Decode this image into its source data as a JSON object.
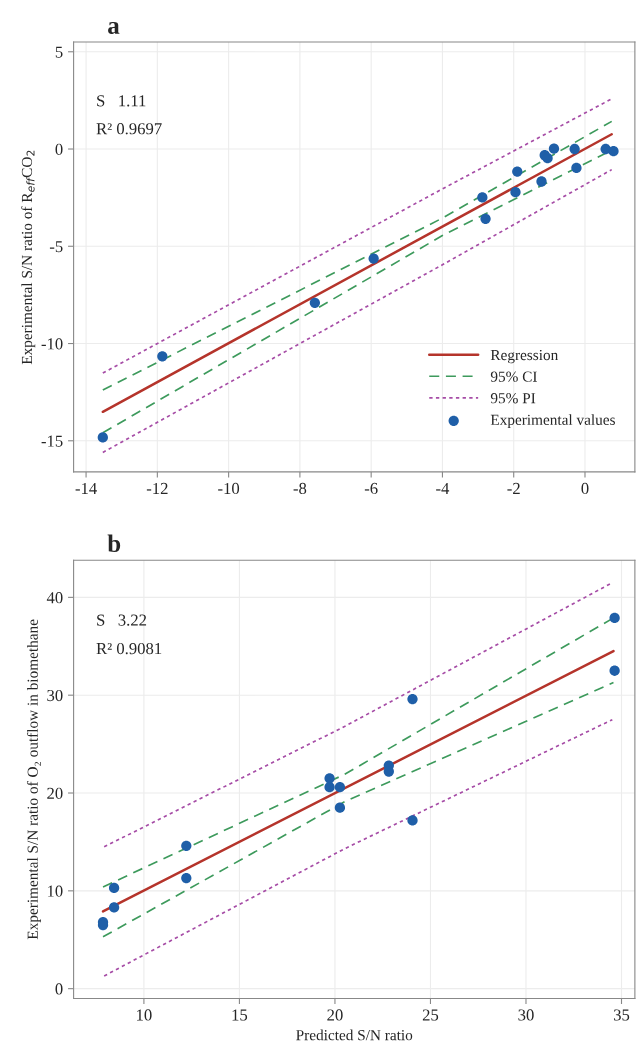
{
  "chart_data": [
    {
      "type": "scatter",
      "title": "a",
      "ylabel": "Experimental S/N ratio of R$_{eff}$CO$_{2}$",
      "xlim": [
        -14.35,
        1.4
      ],
      "ylim": [
        -16.6,
        5.5
      ],
      "xticks": [
        -14,
        -12,
        -10,
        -8,
        -6,
        -4,
        -2,
        0
      ],
      "yticks": [
        -15,
        -10,
        -5,
        0,
        5
      ],
      "grid": true,
      "legend": "bottom right",
      "annotations": [
        "S   1.11",
        "R² 0.9697"
      ],
      "series": [
        {
          "type": "line",
          "name": "Regression",
          "color": "#b5342b",
          "line_style": "solid",
          "x": [
            -13.53,
            0.75
          ],
          "values": [
            -13.51,
            0.76
          ]
        },
        {
          "type": "line",
          "name": "95% CI",
          "color": "#3d9a5c",
          "line_style": "dashed",
          "x": [
            -13.53,
            -4,
            0.75
          ],
          "values": [
            -12.39,
            -3.55,
            1.42
          ]
        },
        {
          "type": "line",
          "color": "#3d9a5c",
          "line_style": "dashed",
          "x": [
            -13.53,
            -4,
            0.75
          ],
          "values": [
            -14.59,
            -4.45,
            -0.06
          ]
        },
        {
          "type": "line",
          "name": "95% PI",
          "color": "#a64ca6",
          "line_style": "dotted",
          "x": [
            -13.53,
            -4,
            0.75
          ],
          "values": [
            -11.52,
            -2.05,
            2.58
          ]
        },
        {
          "type": "line",
          "color": "#a64ca6",
          "line_style": "dotted",
          "x": [
            -13.53,
            -4,
            0.75
          ],
          "values": [
            -15.6,
            -5.95,
            -1.06
          ]
        },
        {
          "name": "Experimental values",
          "color": "#1f5fa8",
          "marker": "circle",
          "x": [
            -13.53,
            -11.86,
            -7.58,
            -5.93,
            -2.88,
            -2.79,
            -1.95,
            -1.9,
            -1.22,
            -1.13,
            -1.05,
            -0.87,
            -0.29,
            -0.24,
            0.58,
            0.8
          ],
          "values": [
            -14.83,
            -10.66,
            -7.91,
            -5.63,
            -2.49,
            -3.59,
            -2.22,
            -1.16,
            -1.67,
            -0.32,
            -0.47,
            0.02,
            0,
            -0.97,
            0,
            -0.11
          ]
        }
      ]
    },
    {
      "type": "scatter",
      "title": "b",
      "xlabel": "Predicted S/N ratio",
      "ylabel": "Experimental S/N ratio of O₂ outflow in biomethane",
      "xlim": [
        6.32,
        35.7
      ],
      "ylim": [
        -1,
        43.8
      ],
      "xticks": [
        10,
        15,
        20,
        25,
        30,
        35
      ],
      "yticks": [
        0,
        10,
        20,
        30,
        40
      ],
      "grid": true,
      "annotations": [
        "S   3.22",
        "R² 0.9081"
      ],
      "series": [
        {
          "type": "line",
          "color": "#b5342b",
          "line_style": "solid",
          "x": [
            7.86,
            34.58
          ],
          "values": [
            7.9,
            34.5
          ]
        },
        {
          "type": "line",
          "color": "#3d9a5c",
          "line_style": "dashed",
          "x": [
            7.86,
            20.5,
            34.58
          ],
          "values": [
            10.4,
            21.9,
            37.9
          ]
        },
        {
          "type": "line",
          "color": "#3d9a5c",
          "line_style": "dashed",
          "x": [
            7.86,
            20.5,
            34.58
          ],
          "values": [
            5.3,
            19.1,
            31.3
          ]
        },
        {
          "type": "line",
          "color": "#a64ca6",
          "line_style": "dotted",
          "x": [
            7.92,
            20.5,
            34.52
          ],
          "values": [
            14.5,
            26.8,
            41.5
          ]
        },
        {
          "type": "line",
          "color": "#a64ca6",
          "line_style": "dotted",
          "x": [
            7.92,
            20.5,
            34.52
          ],
          "values": [
            1.3,
            14.3,
            27.5
          ]
        },
        {
          "color": "#1f5fa8",
          "marker": "circle",
          "x": [
            7.86,
            7.86,
            8.44,
            8.44,
            12.22,
            12.22,
            19.72,
            19.72,
            20.26,
            20.26,
            22.82,
            22.82,
            24.06,
            24.06,
            34.64,
            34.64
          ],
          "values": [
            6.8,
            6.5,
            10.3,
            8.3,
            14.6,
            11.3,
            21.5,
            20.6,
            20.6,
            18.5,
            22.8,
            22.2,
            29.6,
            17.2,
            37.9,
            32.5
          ]
        }
      ]
    }
  ]
}
